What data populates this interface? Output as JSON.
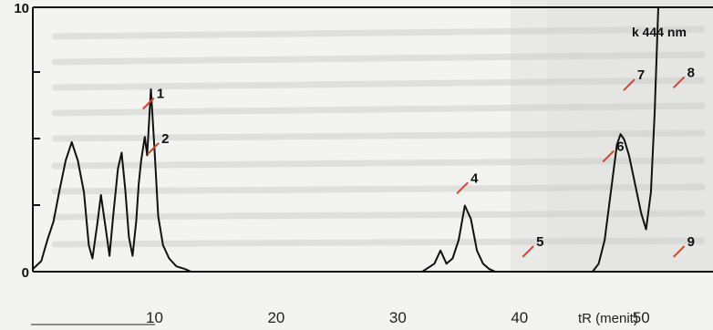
{
  "chart_data": {
    "type": "line",
    "title": "k 444 nm",
    "xlabel": "tR (menit)",
    "ylabel": "",
    "xlim": [
      0,
      55
    ],
    "ylim": [
      0,
      10
    ],
    "x_ticks": [
      {
        "value": 10,
        "label": "10"
      },
      {
        "value": 20,
        "label": "20"
      },
      {
        "value": 30,
        "label": "30"
      },
      {
        "value": 40,
        "label": "40"
      },
      {
        "value": 50,
        "label": "50"
      }
    ],
    "y_ticks": [
      {
        "value": 10,
        "label": "10"
      },
      {
        "value": 0,
        "label": "0"
      }
    ],
    "series": [
      {
        "x": [
          0.0,
          0.7,
          1.2,
          1.7,
          2.2,
          2.7,
          3.2,
          3.7,
          4.2,
          4.6,
          4.9,
          5.3,
          5.6,
          6.0,
          6.3,
          6.6,
          7.0,
          7.3,
          7.6,
          7.9,
          8.2,
          8.5,
          8.7,
          8.9,
          9.2,
          9.4,
          9.7,
          10.0,
          10.3,
          10.7,
          11.2,
          11.8,
          12.5,
          13.0
        ],
        "y": [
          0.1,
          0.4,
          1.2,
          1.9,
          3.1,
          4.2,
          4.9,
          4.2,
          3.0,
          1.0,
          0.5,
          1.8,
          2.9,
          1.6,
          0.6,
          2.1,
          3.9,
          4.5,
          3.1,
          1.3,
          0.6,
          1.9,
          3.3,
          4.2,
          5.1,
          4.4,
          6.9,
          4.6,
          2.1,
          1.0,
          0.5,
          0.2,
          0.1,
          0.0
        ]
      },
      {
        "x": [
          32.0,
          33.0,
          33.5,
          34.0,
          34.5,
          35.0,
          35.5,
          36.0,
          36.5,
          37.0,
          37.5,
          38.0
        ],
        "y": [
          0.0,
          0.3,
          0.8,
          0.3,
          0.5,
          1.2,
          2.5,
          2.0,
          0.8,
          0.3,
          0.1,
          0.0
        ]
      },
      {
        "x": [
          46.0,
          46.5,
          47.0,
          47.5,
          48.0,
          48.3,
          48.6,
          49.0,
          49.5,
          50.0,
          50.4,
          50.8,
          51.1,
          51.4,
          51.6,
          51.8
        ],
        "y": [
          0.0,
          0.3,
          1.2,
          3.0,
          4.8,
          5.2,
          5.0,
          4.4,
          3.3,
          2.2,
          1.6,
          3.0,
          6.0,
          10.0,
          10.0,
          10.0
        ]
      },
      {
        "x": [
          52.6,
          52.9,
          53.2
        ],
        "y": [
          10.0,
          10.0,
          10.0
        ]
      }
    ],
    "peak_labels": [
      {
        "label": "1",
        "x": 9.8,
        "y": 6.5
      },
      {
        "label": "2",
        "x": 10.2,
        "y": 4.8
      },
      {
        "label": "4",
        "x": 35.6,
        "y": 3.3
      },
      {
        "label": "5",
        "x": 41.0,
        "y": 0.9
      },
      {
        "label": "6",
        "x": 47.6,
        "y": 4.5
      },
      {
        "label": "7",
        "x": 49.3,
        "y": 7.2
      },
      {
        "label": "8",
        "x": 53.4,
        "y": 7.3
      },
      {
        "label": "9",
        "x": 53.4,
        "y": 0.9
      }
    ]
  }
}
